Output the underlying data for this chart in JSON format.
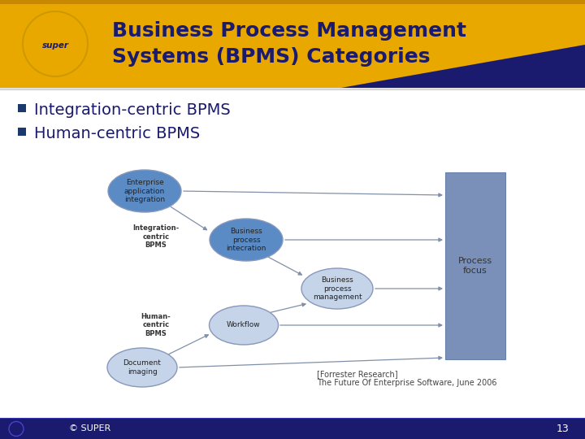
{
  "title_line1": "Business Process Management",
  "title_line2": "Systems (BPMS) Categories",
  "bullet1": "Integration-centric BPMS",
  "bullet2": "Human-centric BPMS",
  "header_gold": "#E8A800",
  "header_gold_dark": "#C88800",
  "header_navy": "#1a1a6e",
  "body_bg_color": "#FFFFFF",
  "title_color": "#1a1a6e",
  "bullet_color": "#1a1a6e",
  "bullet_marker_color": "#1a3a6e",
  "footer_bg_color": "#1a1a6e",
  "footer_text": "© SUPER",
  "footer_page": "13",
  "citation1": "[Forrester Research]",
  "citation2": "The Future Of Enterprise Software, June 2006",
  "ellipse_fill_dark": "#5b8bc5",
  "ellipse_fill_light": "#c5d4e8",
  "ellipse_edge": "#8898bb",
  "rect_fill": "#7a90b8",
  "rect_edge": "#6a80a8",
  "arrow_color": "#8090a8",
  "label_color": "#333333",
  "proc_text_color": "#333333"
}
